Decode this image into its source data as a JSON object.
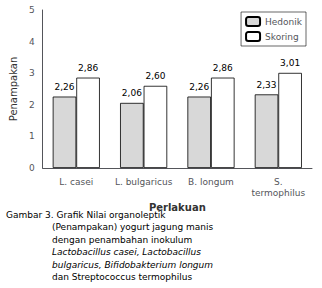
{
  "chart_data": {
    "type": "bar",
    "categories": [
      "L. casei",
      "L. bulgaricus",
      "B. longum",
      "S.\ntermophilus"
    ],
    "series": [
      {
        "name": "Hedonik",
        "color": "#d8d8d8",
        "values": [
          2.26,
          2.06,
          2.26,
          2.33
        ],
        "value_labels": [
          "2,26",
          "2,06",
          "2,26",
          "2,33"
        ]
      },
      {
        "name": "Skoring",
        "color": "#ffffff",
        "values": [
          2.86,
          2.6,
          2.86,
          3.01
        ],
        "value_labels": [
          "2,86",
          "2,60",
          "2,86",
          "3,01"
        ]
      }
    ],
    "y_label": "Penampakan",
    "x_label": "Perlakuan",
    "ylim": [
      0,
      5
    ],
    "yticks": [
      0,
      1,
      2,
      3,
      4,
      5
    ],
    "grid": false,
    "legend": "upper right",
    "data_labels": true,
    "annotations": [
      "Gambar 3. Grafik Nilai organoleptik",
      "(Penampakan) yogurt jagung manis",
      "dengan penambahan inokulum",
      "Lactobacillus casei, Lactobacillus",
      "bulgaricus, Bifidobakterium longum",
      "dan Streptococcus termophilus"
    ]
  }
}
